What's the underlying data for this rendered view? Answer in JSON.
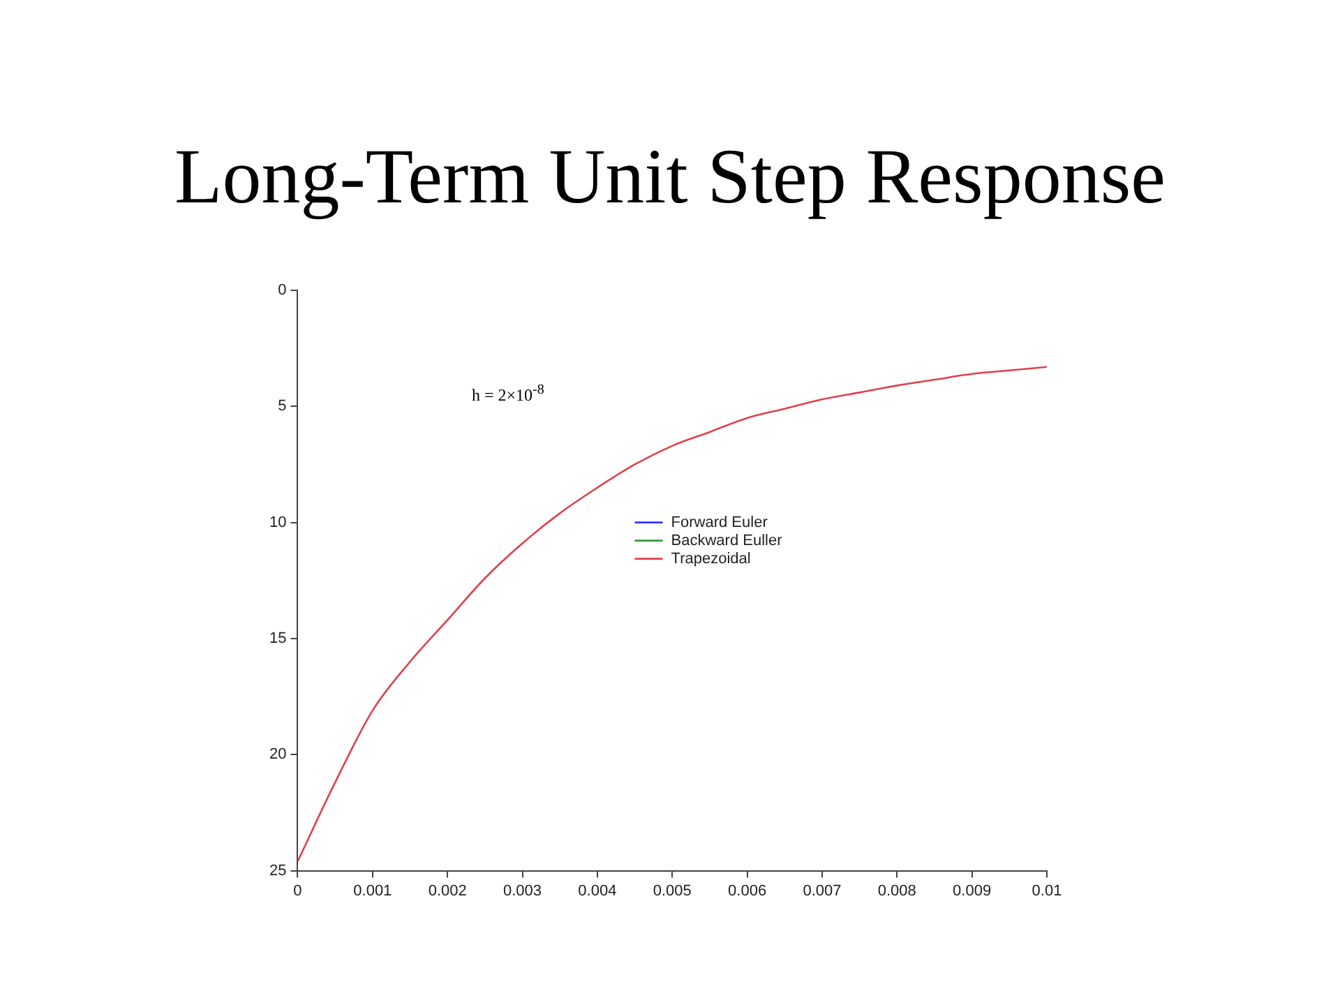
{
  "chart_data": {
    "type": "line",
    "title": "Long-Term Unit Step Response",
    "annotations": [
      "h = 2×10$^{-8}$"
    ],
    "x": [
      0,
      0.0005,
      0.001,
      0.0015,
      0.002,
      0.0025,
      0.003,
      0.0035,
      0.004,
      0.0045,
      0.005,
      0.0055,
      0.006,
      0.0065,
      0.007,
      0.0075,
      0.008,
      0.0085,
      0.009,
      0.0095,
      0.01
    ],
    "series": [
      {
        "name": "Forward Euler",
        "color": "#3333ff",
        "values": [
          null,
          null,
          null,
          null,
          null,
          null,
          null,
          null,
          null,
          null,
          null,
          null,
          null,
          null,
          null,
          null,
          null,
          null,
          null,
          null,
          null
        ]
      },
      {
        "name": "Backward Euller",
        "color": "#339933",
        "values": [
          null,
          null,
          null,
          null,
          null,
          null,
          null,
          null,
          null,
          null,
          null,
          null,
          null,
          null,
          null,
          null,
          null,
          null,
          null,
          null,
          null
        ]
      },
      {
        "name": "Trapezoidal",
        "color": "#e0404a",
        "values": [
          24.6,
          21.2,
          18.1,
          16.0,
          14.2,
          12.4,
          10.9,
          9.6,
          8.5,
          7.5,
          6.7,
          6.1,
          5.5,
          5.1,
          4.7,
          4.4,
          4.1,
          3.85,
          3.6,
          3.45,
          3.3
        ]
      }
    ],
    "xlim": [
      0,
      0.01
    ],
    "xticks": [
      0,
      0.001,
      0.002,
      0.003,
      0.004,
      0.005,
      0.006,
      0.007,
      0.008,
      0.009,
      0.01
    ],
    "ylim": [
      25,
      0
    ],
    "yticks": [
      0,
      5,
      10,
      15,
      20,
      25
    ],
    "grid": false,
    "legend": "right",
    "marker": "none",
    "line_style": "solid"
  }
}
